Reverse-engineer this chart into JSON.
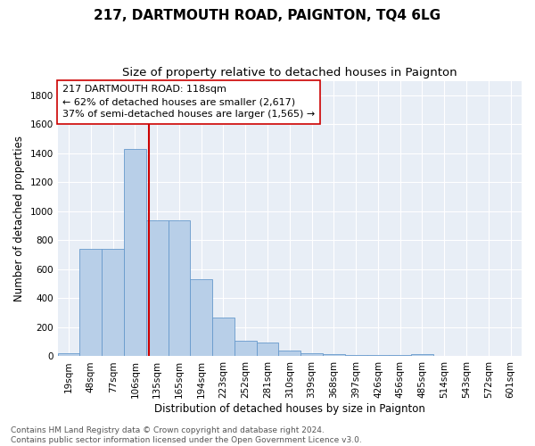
{
  "title": "217, DARTMOUTH ROAD, PAIGNTON, TQ4 6LG",
  "subtitle": "Size of property relative to detached houses in Paignton",
  "xlabel": "Distribution of detached houses by size in Paignton",
  "ylabel": "Number of detached properties",
  "categories": [
    "19sqm",
    "48sqm",
    "77sqm",
    "106sqm",
    "135sqm",
    "165sqm",
    "194sqm",
    "223sqm",
    "252sqm",
    "281sqm",
    "310sqm",
    "339sqm",
    "368sqm",
    "397sqm",
    "426sqm",
    "456sqm",
    "485sqm",
    "514sqm",
    "543sqm",
    "572sqm",
    "601sqm"
  ],
  "values": [
    22,
    738,
    738,
    1430,
    940,
    935,
    530,
    270,
    110,
    95,
    40,
    22,
    15,
    10,
    8,
    6,
    15,
    0,
    0,
    0,
    0
  ],
  "bar_color": "#b8cfe8",
  "bar_edge_color": "#6699cc",
  "vline_x_data": 3.62,
  "vline_color": "#cc0000",
  "annotation_text": "217 DARTMOUTH ROAD: 118sqm\n← 62% of detached houses are smaller (2,617)\n37% of semi-detached houses are larger (1,565) →",
  "annotation_box_color": "#ffffff",
  "annotation_box_edge": "#cc0000",
  "ylim": [
    0,
    1900
  ],
  "yticks": [
    0,
    200,
    400,
    600,
    800,
    1000,
    1200,
    1400,
    1600,
    1800
  ],
  "bg_color": "#e8eef6",
  "footer_text": "Contains HM Land Registry data © Crown copyright and database right 2024.\nContains public sector information licensed under the Open Government Licence v3.0.",
  "title_fontsize": 11,
  "subtitle_fontsize": 9.5,
  "axis_label_fontsize": 8.5,
  "tick_fontsize": 7.5,
  "annotation_fontsize": 8,
  "footer_fontsize": 6.5
}
